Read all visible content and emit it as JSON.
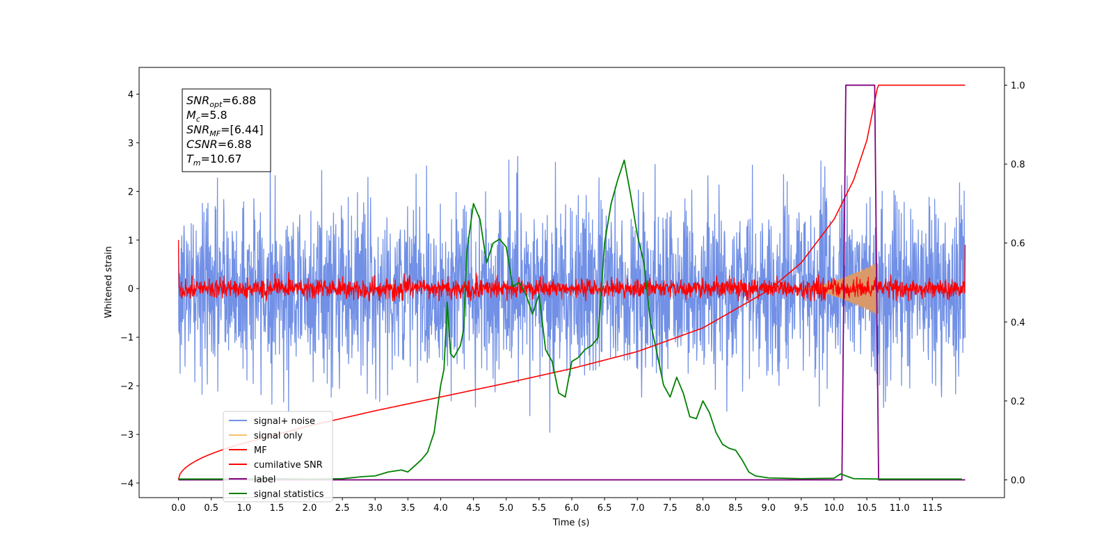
{
  "chart_data": {
    "type": "line",
    "title": "",
    "xlabel": "Time (s)",
    "ylabel": "Whitened strain",
    "xlim": [
      -0.6,
      12.6
    ],
    "ylim": [
      -4.3,
      4.55
    ],
    "y2lim": [
      -0.045,
      1.045
    ],
    "xticks": [
      "0.0",
      "0.5",
      "1.0",
      "1.5",
      "2.0",
      "2.5",
      "3.0",
      "3.5",
      "4.0",
      "4.5",
      "5.0",
      "5.5",
      "6.0",
      "6.5",
      "7.0",
      "7.5",
      "8.0",
      "8.5",
      "9.0",
      "9.5",
      "10.0",
      "10.5",
      "11.0",
      "11.5"
    ],
    "yticks": [
      "4",
      "3",
      "2",
      "1",
      "0",
      "−1",
      "−2",
      "−3",
      "−4"
    ],
    "y2ticks": [
      "1.0",
      "0.8",
      "0.6",
      "0.4",
      "0.2",
      "0.0"
    ],
    "grid": false,
    "legend_position": "lower-left",
    "annotation": {
      "lines": [
        {
          "sym": "SNR",
          "sub": "opt",
          "value": "=6.88"
        },
        {
          "sym": "M",
          "sub": "c",
          "value": "=5.8"
        },
        {
          "sym": "SNR",
          "sub": "MF",
          "value": "=[6.44]"
        },
        {
          "sym": "CSNR",
          "sub": "",
          "value": "=6.88"
        },
        {
          "sym": "T",
          "sub": "m",
          "value": "=10.67"
        }
      ]
    },
    "series": [
      {
        "name": "signal+ noise",
        "color": "#7190e6",
        "axis": "left",
        "kind": "noise",
        "x_range": [
          0.0,
          12.0
        ],
        "amplitude_std": 0.9,
        "peak_max": 4.15,
        "peak_min": -3.45
      },
      {
        "name": "signal only",
        "color": "#f5c36a",
        "axis": "left",
        "kind": "chirp",
        "x_range": [
          9.5,
          10.67
        ],
        "amplitude_max": 0.55
      },
      {
        "name": "MF",
        "color": "#ff0000",
        "axis": "left",
        "kind": "noise",
        "x_range": [
          0.0,
          12.0
        ],
        "amplitude_std": 0.1,
        "start_value": 1.0,
        "end_value": 0.9
      },
      {
        "name": "cumilative SNR",
        "color": "#ff0000",
        "axis": "right",
        "x": [
          0.0,
          1.0,
          2.0,
          3.0,
          4.0,
          5.0,
          6.0,
          7.0,
          8.0,
          9.0,
          9.5,
          10.0,
          10.3,
          10.5,
          10.67,
          12.0
        ],
        "y": [
          0.0,
          0.093,
          0.137,
          0.175,
          0.21,
          0.245,
          0.282,
          0.325,
          0.385,
          0.48,
          0.55,
          0.66,
          0.76,
          0.86,
          1.0,
          1.0
        ]
      },
      {
        "name": "label",
        "color": "#800080",
        "axis": "right",
        "x": [
          0.0,
          10.12,
          10.18,
          10.62,
          10.68,
          12.0
        ],
        "y": [
          0.0,
          0.0,
          1.0,
          1.0,
          0.0,
          0.0
        ]
      },
      {
        "name": "signal statistics",
        "color": "#008000",
        "axis": "right",
        "x": [
          0.0,
          0.5,
          1.0,
          1.5,
          2.0,
          2.5,
          2.8,
          3.0,
          3.2,
          3.4,
          3.5,
          3.7,
          3.8,
          3.9,
          4.0,
          4.05,
          4.1,
          4.15,
          4.2,
          4.3,
          4.35,
          4.4,
          4.5,
          4.6,
          4.7,
          4.8,
          4.9,
          5.0,
          5.1,
          5.2,
          5.3,
          5.4,
          5.5,
          5.6,
          5.7,
          5.8,
          5.9,
          6.0,
          6.1,
          6.2,
          6.3,
          6.4,
          6.5,
          6.6,
          6.7,
          6.8,
          6.9,
          7.0,
          7.1,
          7.2,
          7.3,
          7.4,
          7.5,
          7.6,
          7.7,
          7.8,
          7.9,
          8.0,
          8.1,
          8.2,
          8.3,
          8.4,
          8.5,
          8.6,
          8.7,
          8.8,
          9.0,
          9.5,
          10.0,
          10.1,
          10.3,
          10.7,
          11.0,
          11.5,
          11.95
        ],
        "y": [
          0.002,
          0.002,
          0.002,
          0.003,
          0.002,
          0.003,
          0.008,
          0.01,
          0.02,
          0.025,
          0.02,
          0.05,
          0.07,
          0.12,
          0.24,
          0.28,
          0.45,
          0.32,
          0.31,
          0.34,
          0.38,
          0.58,
          0.7,
          0.66,
          0.55,
          0.6,
          0.61,
          0.59,
          0.49,
          0.5,
          0.47,
          0.42,
          0.47,
          0.33,
          0.3,
          0.22,
          0.21,
          0.3,
          0.31,
          0.33,
          0.34,
          0.36,
          0.6,
          0.7,
          0.76,
          0.81,
          0.72,
          0.62,
          0.55,
          0.4,
          0.32,
          0.24,
          0.21,
          0.26,
          0.22,
          0.16,
          0.155,
          0.2,
          0.17,
          0.12,
          0.09,
          0.08,
          0.075,
          0.05,
          0.02,
          0.01,
          0.005,
          0.003,
          0.004,
          0.015,
          0.003,
          0.002,
          0.002,
          0.002,
          0.002
        ]
      }
    ]
  }
}
